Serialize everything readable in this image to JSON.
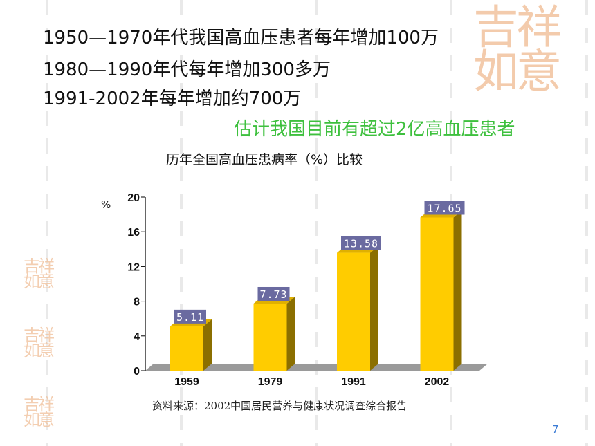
{
  "slide": {
    "lines": [
      "1950—1970年代我国高血压患者每年增加100万",
      "1980—1990年代每年增加300多万",
      "1991-2002年每年增加约700万"
    ],
    "highlight": "估计我国目前有超过2亿高血压患者",
    "colors": {
      "highlight": "#3ec03e",
      "bar_face": "#ffcc00",
      "bar_side": "#8b6f00",
      "label_bg": "#6a6aa0"
    },
    "source": "资料来源：2002中国居民营养与健康状况调查综合报告",
    "page_number": "7"
  },
  "chart_data": {
    "type": "bar",
    "title": "历年全国高血压患病率（%）比较",
    "ylabel": "%",
    "categories": [
      "1959",
      "1979",
      "1991",
      "2002"
    ],
    "values": [
      5.11,
      7.73,
      13.58,
      17.65
    ],
    "value_labels": [
      "5.11",
      "7.73",
      "13.58",
      "17.65"
    ],
    "yticks": [
      "0",
      "4",
      "8",
      "12",
      "16",
      "20"
    ],
    "ylim": [
      0,
      20
    ],
    "style": "3d"
  }
}
